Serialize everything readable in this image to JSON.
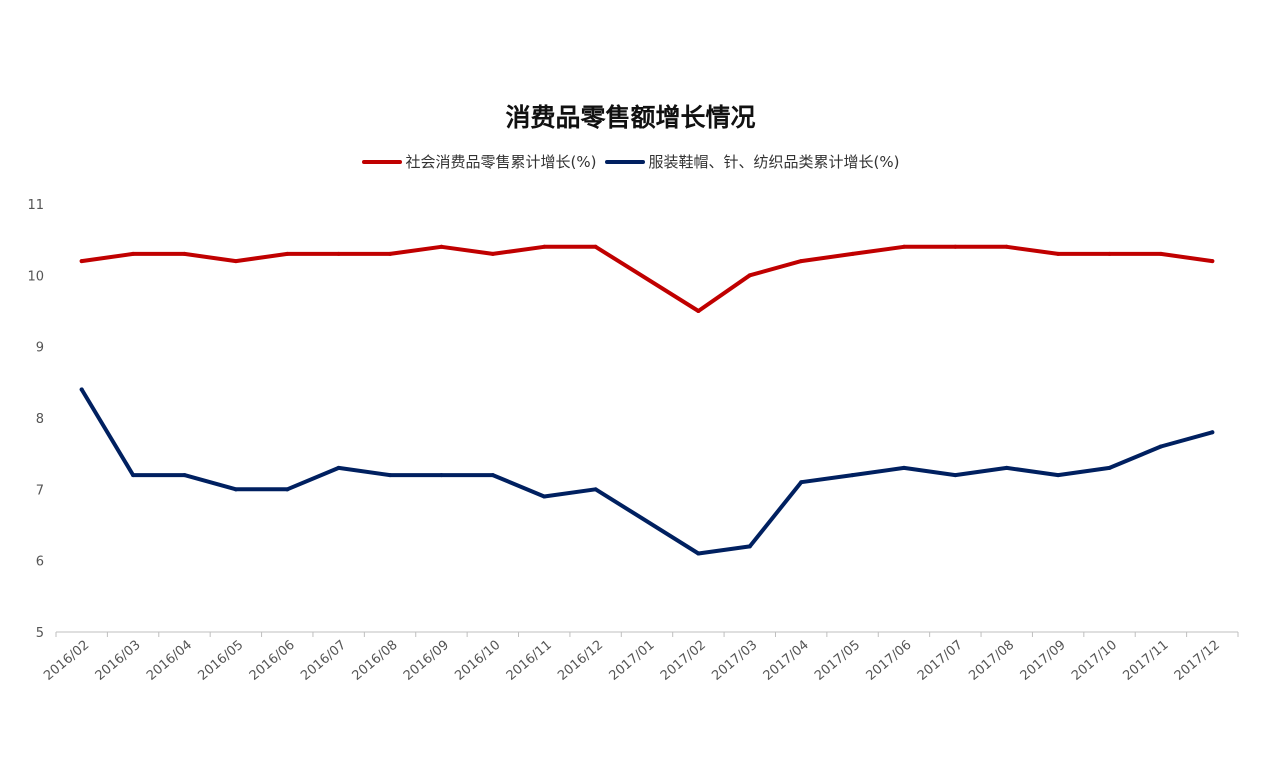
{
  "chart_data": {
    "type": "line",
    "title": "消费品零售额增长情况",
    "xlabel": "",
    "ylabel": "",
    "ylim": [
      5,
      11
    ],
    "yticks": [
      5,
      6,
      7,
      8,
      9,
      10,
      11
    ],
    "grid": false,
    "legend_position": "top",
    "categories": [
      "2016/02",
      "2016/03",
      "2016/04",
      "2016/05",
      "2016/06",
      "2016/07",
      "2016/08",
      "2016/09",
      "2016/10",
      "2016/11",
      "2016/12",
      "2017/01",
      "2017/02",
      "2017/03",
      "2017/04",
      "2017/05",
      "2017/06",
      "2017/07",
      "2017/08",
      "2017/09",
      "2017/10",
      "2017/11",
      "2017/12"
    ],
    "series": [
      {
        "name": "社会消费品零售累计增长(%)",
        "color": "#C00000",
        "values": [
          10.2,
          10.3,
          10.3,
          10.2,
          10.3,
          10.3,
          10.3,
          10.4,
          10.3,
          10.4,
          10.4,
          null,
          9.5,
          10.0,
          10.2,
          10.3,
          10.4,
          10.4,
          10.4,
          10.3,
          10.3,
          10.3,
          10.2
        ]
      },
      {
        "name": "服装鞋帽、针、纺织品类累计增长(%)",
        "color": "#002060",
        "values": [
          8.4,
          7.2,
          7.2,
          7.0,
          7.0,
          7.3,
          7.2,
          7.2,
          7.2,
          6.9,
          7.0,
          null,
          6.1,
          6.2,
          7.1,
          7.2,
          7.3,
          7.2,
          7.3,
          7.2,
          7.3,
          7.6,
          7.8
        ]
      }
    ]
  }
}
